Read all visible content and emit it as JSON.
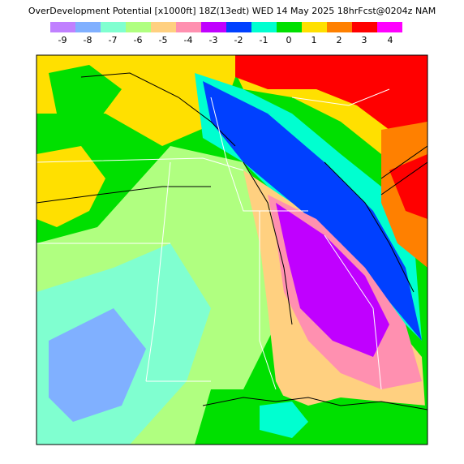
{
  "header": {
    "title": "OverDevelopment Potential [x1000ft] 18Z(13edt) WED 14 May 2025 18hrFcst@0204z NAM"
  },
  "legend": {
    "labels": [
      "-9",
      "-8",
      "-7",
      "-6",
      "-5",
      "-4",
      "-3",
      "-2",
      "-1",
      "0",
      "1",
      "2",
      "3",
      "4"
    ],
    "colors": [
      "#c080ff",
      "#80b0ff",
      "#80ffd0",
      "#b0ff80",
      "#ffd080",
      "#ff90b0",
      "#c000ff",
      "#0040ff",
      "#00ffd0",
      "#00e000",
      "#ffe000",
      "#ff8000",
      "#ff0000",
      "#ff00ff"
    ]
  }
}
